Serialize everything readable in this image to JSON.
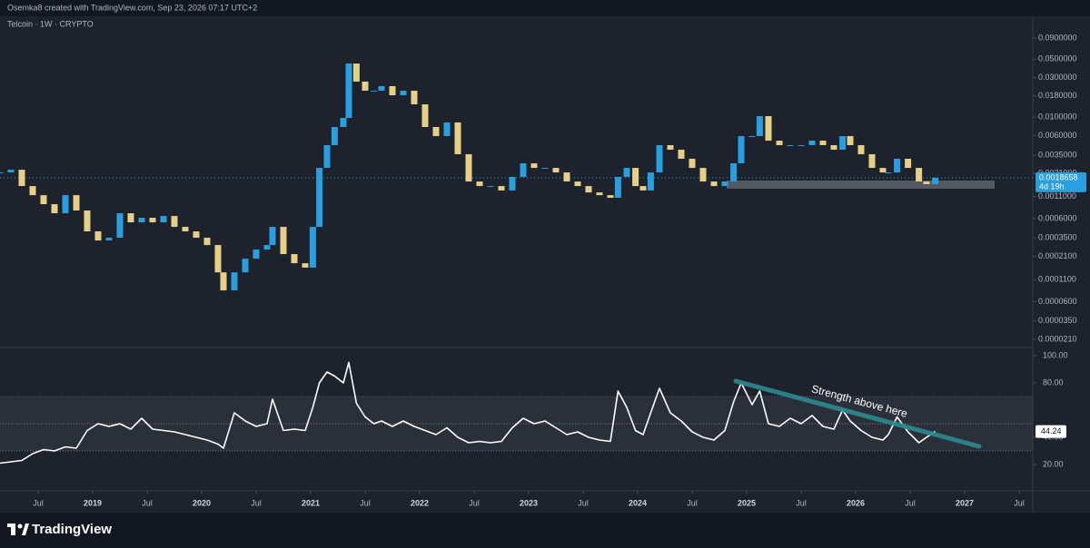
{
  "header": {
    "text": "Osemka8 created with TradingView.com, Sep 23, 2026 07:17 UTC+2"
  },
  "chart_data": [
    {
      "type": "candlestick",
      "title": "Telcoin · 1W · CRYPTO",
      "log_scale": true,
      "up_color": "#2a9fe0",
      "down_color": "#e6cf86",
      "x": [
        2018.15,
        2018.25,
        2018.35,
        2018.45,
        2018.55,
        2018.65,
        2018.75,
        2018.85,
        2018.95,
        2019.05,
        2019.15,
        2019.25,
        2019.35,
        2019.45,
        2019.55,
        2019.65,
        2019.75,
        2019.85,
        2019.95,
        2020.05,
        2020.15,
        2020.2,
        2020.3,
        2020.4,
        2020.5,
        2020.6,
        2020.65,
        2020.75,
        2020.85,
        2020.95,
        2021.02,
        2021.08,
        2021.15,
        2021.22,
        2021.3,
        2021.35,
        2021.42,
        2021.5,
        2021.58,
        2021.65,
        2021.75,
        2021.85,
        2021.95,
        2022.05,
        2022.15,
        2022.25,
        2022.35,
        2022.45,
        2022.55,
        2022.65,
        2022.75,
        2022.85,
        2022.95,
        2023.05,
        2023.15,
        2023.25,
        2023.35,
        2023.45,
        2023.55,
        2023.65,
        2023.75,
        2023.82,
        2023.9,
        2023.98,
        2024.05,
        2024.12,
        2024.2,
        2024.3,
        2024.4,
        2024.5,
        2024.6,
        2024.7,
        2024.8,
        2024.88,
        2024.95,
        2025.05,
        2025.12,
        2025.2,
        2025.3,
        2025.4,
        2025.5,
        2025.6,
        2025.7,
        2025.8,
        2025.88,
        2025.95,
        2026.05,
        2026.15,
        2026.25,
        2026.3,
        2026.38,
        2026.48,
        2026.58,
        2026.65,
        2026.73
      ],
      "values": [
        0.00216,
        0.00233,
        0.00148,
        0.00115,
        0.000895,
        0.000696,
        0.00115,
        0.000751,
        0.000421,
        0.000327,
        0.000353,
        0.000696,
        0.000541,
        0.000614,
        0.000541,
        0.000645,
        0.000477,
        0.000421,
        0.000353,
        0.000288,
        0.000135,
        8.18e-05,
        0.000135,
        0.000197,
        0.000254,
        0.000288,
        0.000477,
        0.000224,
        0.000174,
        0.000154,
        0.000477,
        0.00245,
        0.00461,
        0.00762,
        0.0098,
        0.0444,
        0.0269,
        0.0209,
        0.0209,
        0.0237,
        0.0184,
        0.0209,
        0.0143,
        0.00762,
        0.00592,
        0.00865,
        0.00358,
        0.00168,
        0.00148,
        0.00148,
        0.00131,
        0.00191,
        0.00278,
        0.00245,
        0.00245,
        0.00216,
        0.00168,
        0.00148,
        0.00124,
        0.00115,
        0.00107,
        0.00191,
        0.00245,
        0.00148,
        0.00131,
        0.00216,
        0.00461,
        0.00406,
        0.00316,
        0.00245,
        0.00168,
        0.00148,
        0.00168,
        0.00278,
        0.00592,
        0.00592,
        0.0103,
        0.00522,
        0.00461,
        0.00461,
        0.00461,
        0.00522,
        0.00461,
        0.00406,
        0.00592,
        0.00461,
        0.00358,
        0.00245,
        0.00216,
        0.00216,
        0.00316,
        0.00245,
        0.00168,
        0.00156,
        0.0018658
      ],
      "xlim": [
        2018.15,
        2027.625
      ],
      "ylim": [
        1.72e-05,
        0.1216
      ],
      "yticks": [
        {
          "value": 0.09,
          "label": "0.0900000"
        },
        {
          "value": 0.05,
          "label": "0.0500000"
        },
        {
          "value": 0.03,
          "label": "0.0300000"
        },
        {
          "value": 0.018,
          "label": "0.0180000"
        },
        {
          "value": 0.01,
          "label": "0.0100000"
        },
        {
          "value": 0.006,
          "label": "0.0060000"
        },
        {
          "value": 0.0035,
          "label": "0.0035000"
        },
        {
          "value": 0.0021,
          "label": "0.0021000"
        },
        {
          "value": 0.0011,
          "label": "0.0011000"
        },
        {
          "value": 0.0006,
          "label": "0.0006000"
        },
        {
          "value": 0.00035,
          "label": "0.0003500"
        },
        {
          "value": 0.00021,
          "label": "0.0002100"
        },
        {
          "value": 0.00011,
          "label": "0.0001100"
        },
        {
          "value": 6e-05,
          "label": "0.0000600"
        },
        {
          "value": 3.5e-05,
          "label": "0.0000350"
        },
        {
          "value": 2.1e-05,
          "label": "0.0000210"
        }
      ],
      "last_price": 0.0018658,
      "countdown": "4d 19h"
    },
    {
      "type": "line",
      "color": "#ffffff",
      "annotation": "Strength above here",
      "x": [
        2018.15,
        2018.25,
        2018.35,
        2018.45,
        2018.55,
        2018.65,
        2018.75,
        2018.85,
        2018.95,
        2019.05,
        2019.15,
        2019.25,
        2019.35,
        2019.45,
        2019.55,
        2019.65,
        2019.75,
        2019.85,
        2019.95,
        2020.05,
        2020.15,
        2020.2,
        2020.3,
        2020.4,
        2020.5,
        2020.6,
        2020.65,
        2020.75,
        2020.85,
        2020.95,
        2021.02,
        2021.08,
        2021.15,
        2021.22,
        2021.3,
        2021.35,
        2021.42,
        2021.5,
        2021.58,
        2021.65,
        2021.75,
        2021.85,
        2021.95,
        2022.05,
        2022.15,
        2022.25,
        2022.35,
        2022.45,
        2022.55,
        2022.65,
        2022.75,
        2022.85,
        2022.95,
        2023.05,
        2023.15,
        2023.25,
        2023.35,
        2023.45,
        2023.55,
        2023.65,
        2023.75,
        2023.82,
        2023.9,
        2023.98,
        2024.05,
        2024.12,
        2024.2,
        2024.3,
        2024.4,
        2024.5,
        2024.6,
        2024.7,
        2024.8,
        2024.88,
        2024.95,
        2025.05,
        2025.12,
        2025.2,
        2025.3,
        2025.4,
        2025.5,
        2025.6,
        2025.7,
        2025.8,
        2025.88,
        2025.95,
        2026.05,
        2026.15,
        2026.25,
        2026.3,
        2026.38,
        2026.48,
        2026.58,
        2026.65,
        2026.73
      ],
      "values": [
        21,
        22,
        23,
        28,
        31,
        30,
        33,
        32,
        45,
        50,
        48,
        50,
        46,
        54,
        46,
        45,
        44,
        42,
        40,
        38,
        35,
        32,
        58,
        52,
        48,
        50,
        68,
        45,
        46,
        45,
        62,
        80,
        88,
        85,
        80,
        95,
        65,
        55,
        50,
        52,
        48,
        52,
        48,
        45,
        42,
        47,
        40,
        36,
        37,
        36,
        37,
        47,
        54,
        50,
        52,
        47,
        42,
        44,
        40,
        38,
        37,
        74,
        62,
        45,
        42,
        58,
        76,
        58,
        52,
        44,
        40,
        38,
        45,
        66,
        80,
        64,
        74,
        50,
        48,
        54,
        50,
        56,
        48,
        46,
        60,
        52,
        45,
        40,
        38,
        42,
        55,
        44,
        36,
        40,
        44.24
      ],
      "xlim": [
        2018.15,
        2027.625
      ],
      "ylim": [
        1.33,
        106.67
      ],
      "yticks": [
        {
          "value": 100,
          "label": "100.00"
        },
        {
          "value": 80,
          "label": "80.00"
        },
        {
          "value": 40,
          "label": "40.00"
        },
        {
          "value": 20,
          "label": "20.00"
        }
      ],
      "band": [
        30,
        70
      ],
      "midline": 50,
      "last_value": 44.24,
      "xticks": [
        {
          "value": 2018.5,
          "label": "Jul"
        },
        2019,
        {
          "value": 2019.5,
          "label": "Jul"
        },
        2020,
        {
          "value": 2020.5,
          "label": "Jul"
        },
        2021,
        {
          "value": 2021.5,
          "label": "Jul"
        },
        2022,
        {
          "value": 2022.5,
          "label": "Jul"
        },
        2023,
        {
          "value": 2023.5,
          "label": "Jul"
        },
        2024,
        {
          "value": 2024.5,
          "label": "Jul"
        },
        2025,
        {
          "value": 2025.5,
          "label": "Jul"
        },
        2026,
        {
          "value": 2026.5,
          "label": "Jul"
        },
        2027,
        {
          "value": 2027.5,
          "label": "Jul"
        }
      ]
    }
  ],
  "footer": {
    "brand": "TradingView"
  }
}
